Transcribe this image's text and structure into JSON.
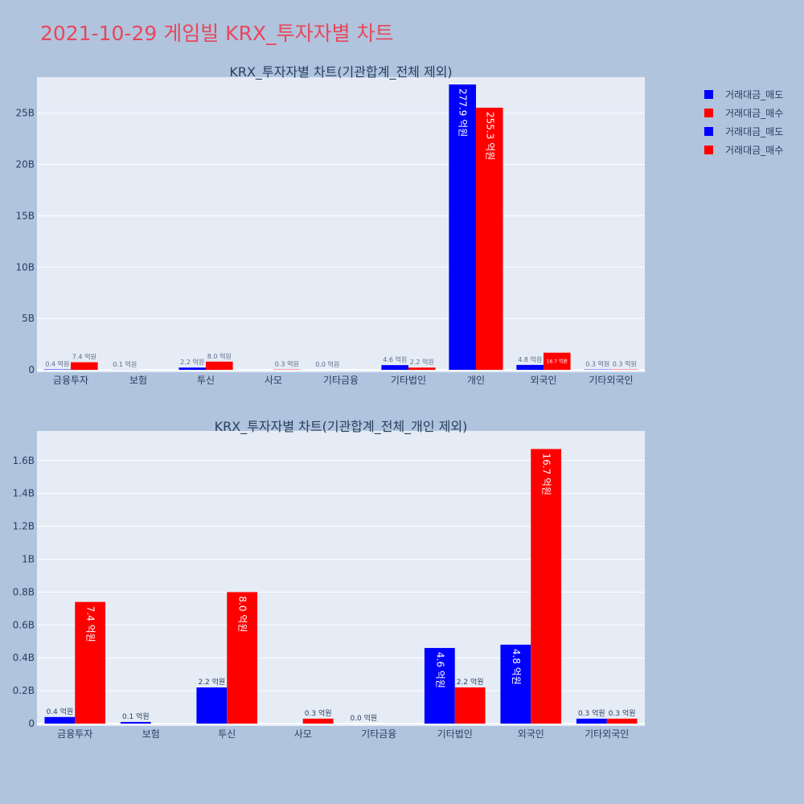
{
  "title": "2021-10-29 게임빌 KRX_투자자별 차트",
  "legend": [
    {
      "label": "거래대금_매도",
      "color": "#0000ff"
    },
    {
      "label": "거래대금_매수",
      "color": "#ff0000"
    },
    {
      "label": "거래대금_매도",
      "color": "#0000ff"
    },
    {
      "label": "거래대금_매수",
      "color": "#ff0000"
    }
  ],
  "chart_data": [
    {
      "type": "bar",
      "title": "KRX_투자자별 차트(기관합계_전체 제외)",
      "categories": [
        "금융투자",
        "보험",
        "투신",
        "사모",
        "기타금융",
        "기타법인",
        "개인",
        "외국인",
        "기타외국인"
      ],
      "ylim": [
        0,
        28500000000
      ],
      "yticks": [
        0,
        5000000000,
        10000000000,
        15000000000,
        20000000000,
        25000000000
      ],
      "ytick_labels": [
        "0",
        "5B",
        "10B",
        "15B",
        "20B",
        "25B"
      ],
      "series": [
        {
          "name": "거래대금_매도",
          "color": "#0000ff",
          "values": [
            40000000,
            10000000,
            220000000,
            0,
            0,
            460000000,
            27790000000,
            480000000,
            30000000
          ],
          "labels": [
            "0.4 억원",
            "0.1 억원",
            "2.2 억원",
            "",
            "0.0 억원",
            "4.6 억원",
            "277.9 억원",
            "4.8 억원",
            "0.3 억원"
          ]
        },
        {
          "name": "거래대금_매수",
          "color": "#ff0000",
          "values": [
            740000000,
            0,
            800000000,
            30000000,
            0,
            220000000,
            25530000000,
            1670000000,
            30000000
          ],
          "labels": [
            "7.4 억원",
            "",
            "8.0 억원",
            "0.3 억원",
            "",
            "2.2 억원",
            "255.3 억원",
            "16.7 억원",
            "0.3 억원"
          ]
        }
      ]
    },
    {
      "type": "bar",
      "title": "KRX_투자자별 차트(기관합계_전체_개인 제외)",
      "categories": [
        "금융투자",
        "보험",
        "투신",
        "사모",
        "기타금융",
        "기타법인",
        "외국인",
        "기타외국인"
      ],
      "ylim": [
        0,
        1780000000
      ],
      "yticks": [
        0,
        200000000,
        400000000,
        600000000,
        800000000,
        1000000000,
        1200000000,
        1400000000,
        1600000000
      ],
      "ytick_labels": [
        "0",
        "0.2B",
        "0.4B",
        "0.6B",
        "0.8B",
        "1B",
        "1.2B",
        "1.4B",
        "1.6B"
      ],
      "series": [
        {
          "name": "거래대금_매도",
          "color": "#0000ff",
          "values": [
            40000000,
            10000000,
            220000000,
            0,
            0,
            460000000,
            480000000,
            30000000
          ],
          "labels": [
            "0.4 억원",
            "0.1 억원",
            "2.2 억원",
            "",
            "0.0 억원",
            "4.6 억원",
            "4.8 억원",
            "0.3 억원"
          ]
        },
        {
          "name": "거래대금_매수",
          "color": "#ff0000",
          "values": [
            740000000,
            0,
            800000000,
            30000000,
            0,
            220000000,
            1670000000,
            30000000
          ],
          "labels": [
            "7.4 억원",
            "",
            "8.0 억원",
            "0.3 억원",
            "",
            "2.2 억원",
            "16.7 억원",
            "0.3 억원"
          ]
        }
      ]
    }
  ]
}
